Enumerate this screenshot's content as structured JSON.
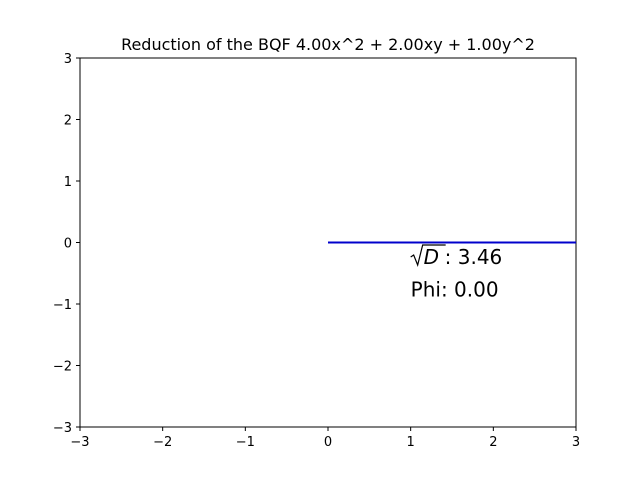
{
  "chart_data": {
    "type": "line",
    "title": "Reduction of the BQF 4.00x^2 + 2.00xy + 1.00y^2",
    "xlabel": "",
    "ylabel": "",
    "xlim": [
      -3,
      3
    ],
    "ylim": [
      -3,
      3
    ],
    "grid": false,
    "x_ticks": [
      -3,
      -2,
      -1,
      0,
      1,
      2,
      3
    ],
    "y_ticks": [
      -3,
      -2,
      -1,
      0,
      1,
      2,
      3
    ],
    "x_tick_labels": [
      "−3",
      "−2",
      "−1",
      "0",
      "1",
      "2",
      "3"
    ],
    "y_tick_labels": [
      "−3",
      "−2",
      "−1",
      "0",
      "1",
      "2",
      "3"
    ],
    "series": [
      {
        "color": "#0000cc",
        "x": [
          0,
          3
        ],
        "y": [
          0,
          0
        ]
      }
    ],
    "annotations": [
      {
        "id": "sqrt_d",
        "symbol": "D",
        "text": ": 3.46",
        "x": 1.0,
        "y": -0.35
      },
      {
        "id": "phi",
        "text": "Phi: 0.00",
        "x": 1.0,
        "y": -0.88
      }
    ]
  }
}
